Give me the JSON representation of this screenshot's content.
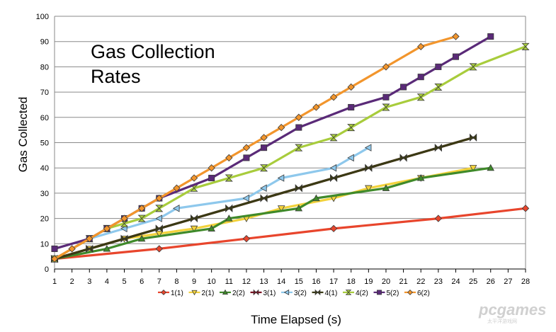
{
  "chart_data": {
    "type": "line",
    "title_lines": [
      "Gas Collection",
      "Rates"
    ],
    "xlabel": "Time Elapsed (s)",
    "ylabel": "Gas Collected",
    "x_ticks": [
      1,
      2,
      3,
      4,
      5,
      6,
      7,
      8,
      9,
      10,
      11,
      12,
      13,
      14,
      15,
      16,
      17,
      18,
      19,
      20,
      21,
      22,
      23,
      24,
      25,
      26,
      27,
      28
    ],
    "xlim": [
      1,
      28
    ],
    "ylim": [
      0,
      100
    ],
    "y_ticks": [
      0,
      10,
      20,
      30,
      40,
      50,
      60,
      70,
      80,
      90,
      100
    ],
    "grid": "horizontal",
    "legend_position": "bottom",
    "series": [
      {
        "name": "1(1)",
        "color": "#e8452c",
        "marker": "diamond",
        "x": [
          1,
          7,
          12,
          17,
          23,
          28
        ],
        "y": [
          4,
          8,
          12,
          16,
          20,
          24
        ]
      },
      {
        "name": "2(1)",
        "color": "#f2d23c",
        "marker": "triangle-down",
        "x": [
          1,
          3,
          5,
          7,
          9,
          12,
          14,
          17,
          19,
          22,
          25
        ],
        "y": [
          4,
          8,
          12,
          14,
          16,
          20,
          24,
          28,
          32,
          36,
          40
        ]
      },
      {
        "name": "2(2)",
        "color": "#3f8a2a",
        "marker": "triangle-up",
        "x": [
          1,
          4,
          6,
          10,
          11,
          15,
          16,
          20,
          22,
          26
        ],
        "y": [
          4,
          8,
          12,
          16,
          20,
          24,
          28,
          32,
          36,
          40
        ]
      },
      {
        "name": "3(1)",
        "color": "#7a1020",
        "marker": "bowtie",
        "x": [
          1,
          3,
          5,
          7,
          9,
          11,
          13,
          15,
          17,
          19,
          21,
          23,
          25
        ],
        "y": [
          4,
          8,
          12,
          16,
          20,
          24,
          28,
          32,
          36,
          40,
          44,
          48,
          52
        ]
      },
      {
        "name": "3(2)",
        "color": "#8ec8ec",
        "marker": "triangle-left",
        "x": [
          1,
          3,
          5,
          7,
          8,
          12,
          13,
          14,
          17,
          18,
          19
        ],
        "y": [
          4,
          12,
          16,
          20,
          24,
          28,
          32,
          36,
          40,
          44,
          48
        ]
      },
      {
        "name": "4(1)",
        "color": "#3a3a14",
        "marker": "bowtie",
        "x": [
          1,
          3,
          5,
          7,
          9,
          11,
          13,
          15,
          17,
          19,
          21,
          23,
          25
        ],
        "y": [
          4,
          8,
          12,
          16,
          20,
          24,
          28,
          32,
          36,
          40,
          44,
          48,
          52
        ]
      },
      {
        "name": "4(2)",
        "color": "#a8cc3c",
        "marker": "hourglass",
        "x": [
          1,
          3,
          4,
          5,
          6,
          7,
          9,
          11,
          13,
          15,
          17,
          18,
          20,
          22,
          23,
          25,
          28
        ],
        "y": [
          4,
          12,
          16,
          18,
          20,
          24,
          32,
          36,
          40,
          48,
          52,
          56,
          64,
          68,
          72,
          80,
          88
        ]
      },
      {
        "name": "5(2)",
        "color": "#5a2a78",
        "marker": "square",
        "x": [
          1,
          3,
          4,
          5,
          6,
          7,
          10,
          12,
          13,
          15,
          18,
          20,
          21,
          22,
          23,
          24,
          26
        ],
        "y": [
          8,
          12,
          16,
          20,
          24,
          28,
          36,
          44,
          48,
          56,
          64,
          68,
          72,
          76,
          80,
          84,
          92
        ]
      },
      {
        "name": "6(2)",
        "color": "#f2952c",
        "marker": "diamond",
        "x": [
          1,
          2,
          3,
          4,
          5,
          6,
          7,
          8,
          9,
          10,
          11,
          12,
          13,
          14,
          15,
          16,
          17,
          18,
          20,
          22,
          24
        ],
        "y": [
          4,
          8,
          12,
          16,
          20,
          24,
          28,
          32,
          36,
          40,
          44,
          48,
          52,
          56,
          60,
          64,
          68,
          72,
          80,
          88,
          92
        ]
      }
    ]
  },
  "watermark": {
    "text": "pcgames",
    "sub": "太平洋游戏网"
  }
}
